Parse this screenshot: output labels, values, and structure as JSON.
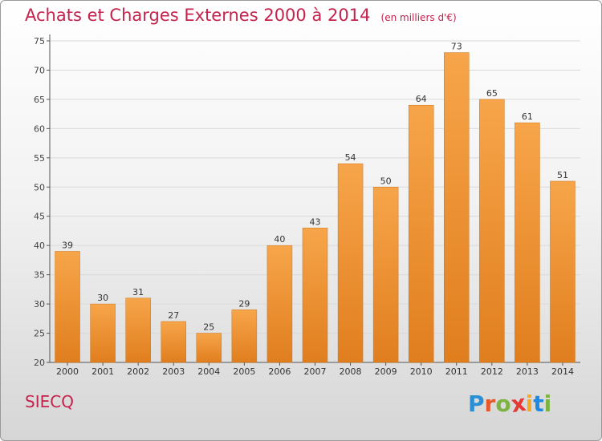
{
  "header": {
    "title": "Achats et Charges Externes 2000 à 2014",
    "unit": "(en milliers d'€)"
  },
  "footer": {
    "commune": "SIECQ",
    "logo_letters": [
      "P",
      "r",
      "o",
      "x",
      "i",
      "t",
      "i"
    ],
    "logo_colors": [
      "#2b8fd6",
      "#e8562b",
      "#7cb342",
      "#e53935",
      "#f9a825",
      "#1e88e5",
      "#7cb342"
    ]
  },
  "colors": {
    "bar_light": "#f7a54a",
    "bar_dark": "#e07e1e",
    "grid": "#dadada",
    "axis": "#555555",
    "title": "#c4234d"
  },
  "chart_data": {
    "type": "bar",
    "title": "Achats et Charges Externes 2000 à 2014",
    "subtitle": "(en milliers d'€)",
    "categories": [
      "2000",
      "2001",
      "2002",
      "2003",
      "2004",
      "2005",
      "2006",
      "2007",
      "2008",
      "2009",
      "2010",
      "2011",
      "2012",
      "2013",
      "2014"
    ],
    "values": [
      39,
      30,
      31,
      27,
      25,
      29,
      40,
      43,
      54,
      50,
      64,
      73,
      65,
      61,
      51
    ],
    "ylim": [
      20,
      75
    ],
    "yticks": [
      20,
      25,
      30,
      35,
      40,
      45,
      50,
      55,
      60,
      65,
      70,
      75
    ],
    "grid": true,
    "xlabel": "",
    "ylabel": ""
  }
}
